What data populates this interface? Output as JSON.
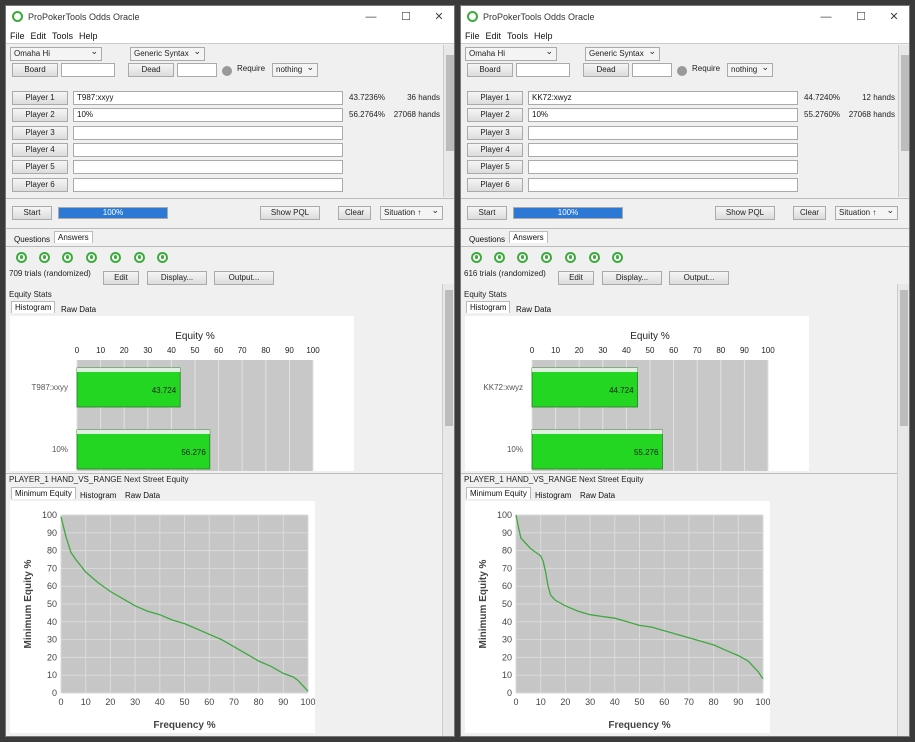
{
  "windows": [
    {
      "title": "ProPokerTools Odds Oracle",
      "menu": [
        "File",
        "Edit",
        "Tools",
        "Help"
      ],
      "game": "Omaha Hi",
      "syntax": "Generic Syntax",
      "board_label": "Board",
      "dead_label": "Dead",
      "require_label": "Require",
      "require_value": "nothing",
      "players": [
        {
          "label": "Player 1",
          "hand": "T987:xxyy",
          "equity": "43.7236%",
          "hands": "36 hands"
        },
        {
          "label": "Player 2",
          "hand": "10%",
          "equity": "56.2764%",
          "hands": "27068 hands"
        },
        {
          "label": "Player 3",
          "hand": "",
          "equity": "",
          "hands": ""
        },
        {
          "label": "Player 4",
          "hand": "",
          "equity": "",
          "hands": ""
        },
        {
          "label": "Player 5",
          "hand": "",
          "equity": "",
          "hands": ""
        },
        {
          "label": "Player 6",
          "hand": "",
          "equity": "",
          "hands": ""
        }
      ],
      "start_label": "Start",
      "progress": 100,
      "progress_label": "100%",
      "show_pql_label": "Show PQL",
      "clear_label": "Clear",
      "situation_label": "Situation ↑",
      "tabs": [
        "Questions",
        "Answers"
      ],
      "trials": "709 trials (randomized)",
      "edit_label": "Edit",
      "display_label": "Display...",
      "output_label": "Output...",
      "equity_stats_label": "Equity Stats",
      "stats_tabs": [
        "Histogram",
        "Raw Data"
      ],
      "hist": {
        "title": "Equity %",
        "ticks": [
          "0",
          "10",
          "20",
          "30",
          "40",
          "50",
          "60",
          "70",
          "80",
          "90",
          "100"
        ],
        "bars": [
          {
            "label": "T987:xxyy",
            "value": 43.724,
            "text": "43.724"
          },
          {
            "label": "10%",
            "value": 56.276,
            "text": "56.276"
          }
        ],
        "bar_color": "#22d622"
      },
      "nse_title": "PLAYER_1 HAND_VS_RANGE Next Street Equity",
      "nse_tabs": [
        "Minimum Equity",
        "Histogram",
        "Raw Data"
      ],
      "chart_data": {
        "type": "line",
        "xlabel": "Frequency %",
        "ylabel": "Minimum Equity %",
        "xlim": [
          0,
          100
        ],
        "ylim": [
          0,
          100
        ],
        "xticks": [
          "0",
          "10",
          "20",
          "30",
          "40",
          "50",
          "60",
          "70",
          "80",
          "90",
          "100"
        ],
        "yticks": [
          "0",
          "10",
          "20",
          "30",
          "40",
          "50",
          "60",
          "70",
          "80",
          "90",
          "100"
        ],
        "grid": true,
        "line_color": "#3fa83f",
        "x": [
          0,
          2,
          4,
          6,
          10,
          15,
          20,
          25,
          30,
          35,
          40,
          45,
          50,
          55,
          60,
          65,
          70,
          75,
          80,
          85,
          90,
          94,
          96,
          98,
          100
        ],
        "y": [
          99,
          88,
          79,
          75,
          68,
          62,
          57,
          53,
          49,
          46,
          44,
          41,
          39,
          36,
          33,
          30,
          26,
          22,
          18,
          15,
          11,
          9,
          7,
          4,
          1
        ]
      }
    },
    {
      "title": "ProPokerTools Odds Oracle",
      "menu": [
        "File",
        "Edit",
        "Tools",
        "Help"
      ],
      "game": "Omaha Hi",
      "syntax": "Generic Syntax",
      "board_label": "Board",
      "dead_label": "Dead",
      "require_label": "Require",
      "require_value": "nothing",
      "players": [
        {
          "label": "Player 1",
          "hand": "KK72:xwyz",
          "equity": "44.7240%",
          "hands": "12 hands"
        },
        {
          "label": "Player 2",
          "hand": "10%",
          "equity": "55.2760%",
          "hands": "27068 hands"
        },
        {
          "label": "Player 3",
          "hand": "",
          "equity": "",
          "hands": ""
        },
        {
          "label": "Player 4",
          "hand": "",
          "equity": "",
          "hands": ""
        },
        {
          "label": "Player 5",
          "hand": "",
          "equity": "",
          "hands": ""
        },
        {
          "label": "Player 6",
          "hand": "",
          "equity": "",
          "hands": ""
        }
      ],
      "start_label": "Start",
      "progress": 100,
      "progress_label": "100%",
      "show_pql_label": "Show PQL",
      "clear_label": "Clear",
      "situation_label": "Situation ↑",
      "tabs": [
        "Questions",
        "Answers"
      ],
      "trials": "616 trials (randomized)",
      "edit_label": "Edit",
      "display_label": "Display...",
      "output_label": "Output...",
      "equity_stats_label": "Equity Stats",
      "stats_tabs": [
        "Histogram",
        "Raw Data"
      ],
      "hist": {
        "title": "Equity %",
        "ticks": [
          "0",
          "10",
          "20",
          "30",
          "40",
          "50",
          "60",
          "70",
          "80",
          "90",
          "100"
        ],
        "bars": [
          {
            "label": "KK72:xwyz",
            "value": 44.724,
            "text": "44.724"
          },
          {
            "label": "10%",
            "value": 55.276,
            "text": "55.276"
          }
        ],
        "bar_color": "#22d622"
      },
      "nse_title": "PLAYER_1 HAND_VS_RANGE Next Street Equity",
      "nse_tabs": [
        "Minimum Equity",
        "Histogram",
        "Raw Data"
      ],
      "chart_data": {
        "type": "line",
        "xlabel": "Frequency %",
        "ylabel": "Minimum Equity %",
        "xlim": [
          0,
          100
        ],
        "ylim": [
          0,
          100
        ],
        "xticks": [
          "0",
          "10",
          "20",
          "30",
          "40",
          "50",
          "60",
          "70",
          "80",
          "90",
          "100"
        ],
        "yticks": [
          "0",
          "10",
          "20",
          "30",
          "40",
          "50",
          "60",
          "70",
          "80",
          "90",
          "100"
        ],
        "grid": true,
        "line_color": "#3fa83f",
        "x": [
          0,
          1,
          2,
          4,
          6,
          8,
          10,
          11,
          12,
          13,
          14,
          16,
          20,
          25,
          30,
          35,
          40,
          45,
          50,
          55,
          60,
          65,
          70,
          75,
          80,
          85,
          90,
          94,
          96,
          98,
          100
        ],
        "y": [
          100,
          93,
          87,
          84,
          81,
          79,
          77,
          74,
          68,
          60,
          55,
          52,
          49,
          46,
          44,
          43,
          42,
          40,
          38,
          37,
          35,
          33,
          31,
          29,
          27,
          24,
          21,
          18,
          15,
          12,
          8
        ]
      }
    }
  ]
}
